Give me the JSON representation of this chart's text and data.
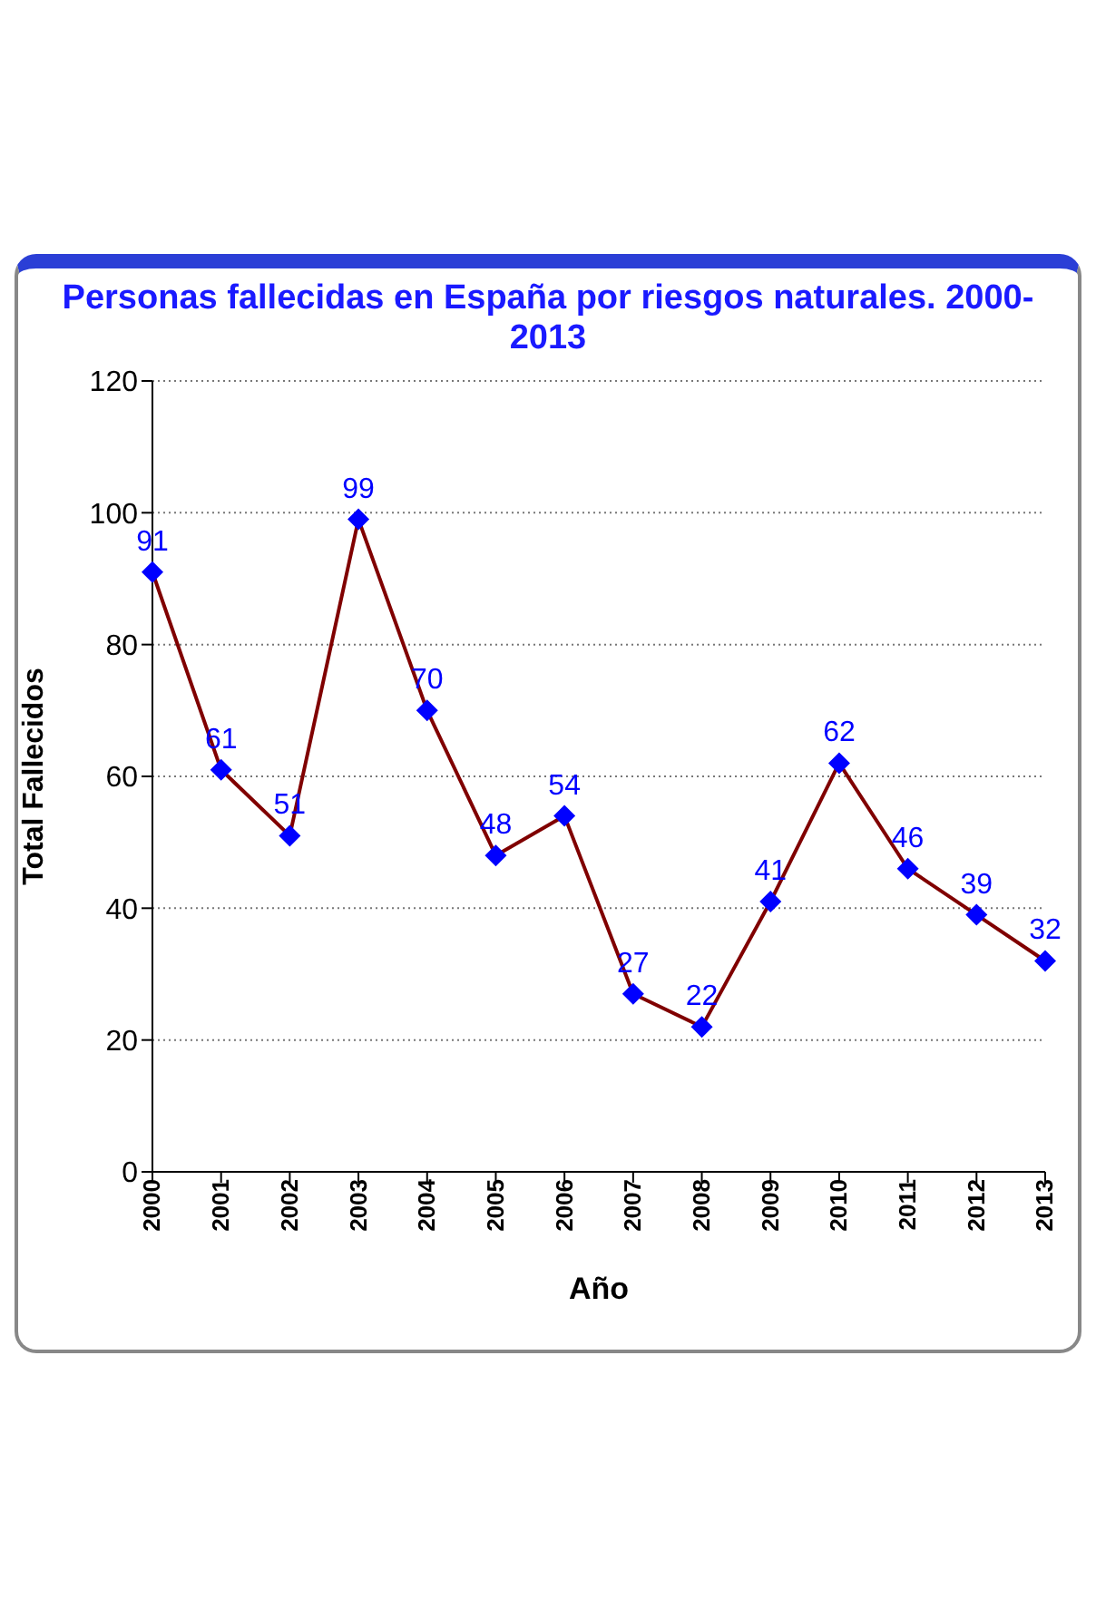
{
  "chart_data": {
    "type": "line",
    "title": "Personas fallecidas en España por riesgos naturales. 2000-2013",
    "xlabel": "Año",
    "ylabel": "Total Fallecidos",
    "categories": [
      "2000",
      "2001",
      "2002",
      "2003",
      "2004",
      "2005",
      "2006",
      "2007",
      "2008",
      "2009",
      "2010",
      "2011",
      "2012",
      "2013"
    ],
    "series": [
      {
        "color": "#800000",
        "values": [
          91,
          61,
          51,
          99,
          70,
          48,
          54,
          27,
          22,
          41,
          62,
          46,
          39,
          32
        ]
      }
    ],
    "ylim": [
      0,
      120
    ],
    "yticks": [
      0,
      20,
      40,
      60,
      80,
      100,
      120
    ],
    "grid": "y",
    "marker": "diamond",
    "line_style": "solid",
    "data_labels": true
  }
}
